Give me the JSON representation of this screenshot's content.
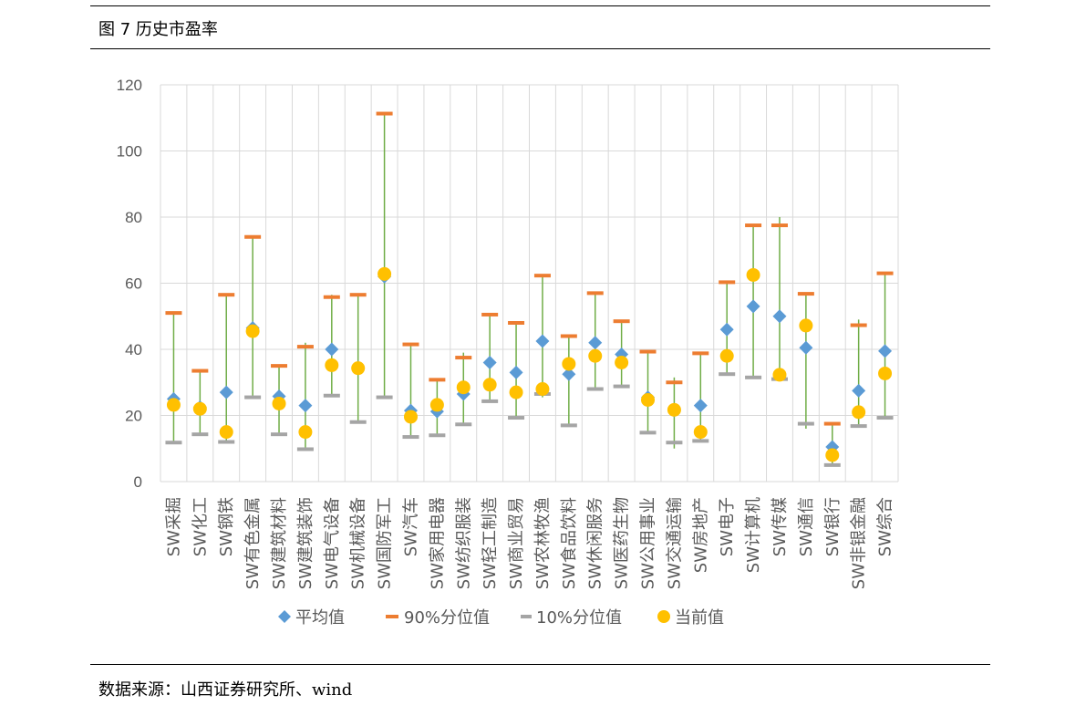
{
  "figure_title": "图 7  历史市盈率",
  "source_note": "数据来源：山西证券研究所、wind",
  "colors": {
    "avg": "#5b9bd5",
    "p90": "#ed7d31",
    "p10": "#a5a5a5",
    "current": "#ffc000",
    "range_line": "#70ad47",
    "grid": "#d9d9d9",
    "text": "#595959"
  },
  "chart_data": {
    "type": "scatter",
    "title": "",
    "ylim": [
      0,
      120
    ],
    "yticks": [
      0,
      20,
      40,
      60,
      80,
      100,
      120
    ],
    "grid": true,
    "legend_position": "bottom",
    "categories": [
      "SW采掘",
      "SW化工",
      "SW钢铁",
      "SW有色金属",
      "SW建筑材料",
      "SW建筑装饰",
      "SW电气设备",
      "SW机械设备",
      "SW国防军工",
      "SW汽车",
      "SW家用电器",
      "SW纺织服装",
      "SW轻工制造",
      "SW商业贸易",
      "SW农林牧渔",
      "SW食品饮料",
      "SW休闲服务",
      "SW医药生物",
      "SW公用事业",
      "SW交通运输",
      "SW房地产",
      "SW电子",
      "SW计算机",
      "SW传媒",
      "SW通信",
      "SW银行",
      "SW非银金融",
      "SW综合"
    ],
    "series": [
      {
        "name": "平均值",
        "marker": "diamond",
        "values": [
          25,
          22.5,
          27,
          46.5,
          25.8,
          23,
          40,
          34.5,
          62,
          21.5,
          21.2,
          26.5,
          36,
          33,
          42.5,
          32.5,
          42,
          38.5,
          25.5,
          21.5,
          23,
          46,
          53,
          50,
          40.5,
          10.5,
          27.5,
          39.5
        ]
      },
      {
        "name": "90%分位值",
        "marker": "dash",
        "values": [
          51,
          33.5,
          56.5,
          74,
          35,
          40.8,
          55.8,
          56.5,
          111.3,
          41.5,
          30.8,
          37.5,
          50.5,
          48,
          62.3,
          44,
          57,
          48.5,
          39.3,
          30,
          38.8,
          60.3,
          77.5,
          77.5,
          56.8,
          17.5,
          47.3,
          63
        ]
      },
      {
        "name": "10%分位值",
        "marker": "dash",
        "values": [
          11.8,
          14.3,
          12,
          25.5,
          14.3,
          9.8,
          26,
          18,
          25.5,
          13.5,
          14,
          17.3,
          24.3,
          19.3,
          26.5,
          17,
          28,
          28.8,
          14.8,
          11.8,
          12.3,
          32.5,
          31.5,
          31,
          17.5,
          5,
          16.8,
          19.3
        ]
      },
      {
        "name": "当前值",
        "marker": "circle",
        "values": [
          23.2,
          22,
          15,
          45.5,
          23.6,
          15,
          35.2,
          34.3,
          62.8,
          19.6,
          23.2,
          28.5,
          29.3,
          27,
          28,
          35.6,
          38,
          36,
          24.7,
          21.7,
          15,
          38,
          62.5,
          32.3,
          47.2,
          8,
          21,
          32.7
        ]
      }
    ],
    "range_low": [
      11.8,
      14.3,
      12,
      25.5,
      14.3,
      9.8,
      26,
      18,
      25.5,
      13.5,
      14,
      17.3,
      24.3,
      19.3,
      25.5,
      17,
      28,
      28.8,
      14.8,
      10,
      12.3,
      32.5,
      31.5,
      31,
      16,
      5,
      16.8,
      19.3
    ],
    "range_high": [
      51,
      33.5,
      56.5,
      74,
      35,
      42,
      56.5,
      56.5,
      111.3,
      41.5,
      30.8,
      39,
      50.5,
      48,
      62.3,
      44,
      57,
      48.5,
      39.3,
      31.5,
      38.8,
      60.3,
      77.5,
      80,
      56.8,
      17.5,
      49,
      63
    ]
  }
}
